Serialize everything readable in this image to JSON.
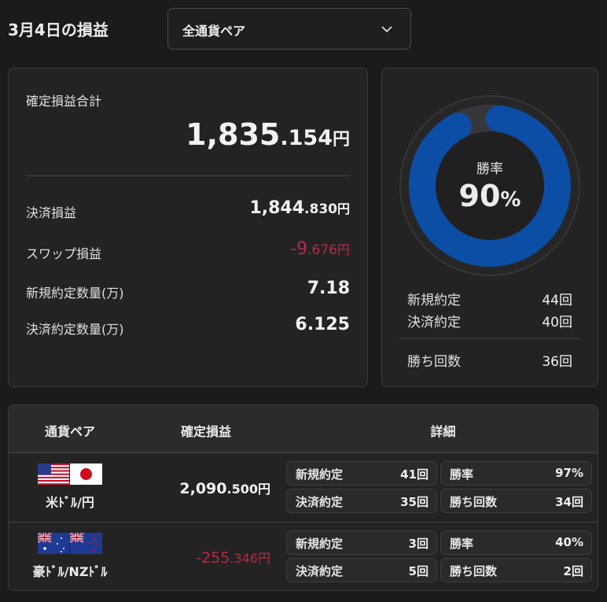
{
  "header": {
    "title": "3月4日の損益",
    "dropdown": "全通貨ペア"
  },
  "summary": {
    "total": {
      "label": "確定損益合計",
      "integer": "1,835",
      "decimal": ".154",
      "unit": "円"
    },
    "rows": [
      {
        "label": "決済損益",
        "integer": "1,844",
        "decimal": ".830",
        "unit": "円"
      },
      {
        "label": "スワップ損益",
        "integer": "-9",
        "decimal": ".676",
        "unit": "円"
      },
      {
        "label": "新規約定数量(万)",
        "value": "7.18"
      },
      {
        "label": "決済約定数量(万)",
        "value": "6.125"
      }
    ]
  },
  "win_rate_card": {
    "label": "勝率",
    "value": 90,
    "unit": "%",
    "rows": [
      {
        "label": "新規約定",
        "value": "44",
        "unit": "回"
      },
      {
        "label": "決済約定",
        "value": "40",
        "unit": "回"
      },
      {
        "label": "勝ち回数",
        "value": "36",
        "unit": "回"
      }
    ]
  },
  "table": {
    "columns": [
      "通貨ペア",
      "確定損益",
      "詳細"
    ],
    "rows": [
      {
        "pair": "米ﾄﾞﾙ/円",
        "pl": {
          "integer": "2,090",
          "decimal": ".500",
          "unit": "円"
        },
        "details": [
          {
            "label": "新規約定",
            "value": "41",
            "unit": "回"
          },
          {
            "label": "勝率",
            "value": "97",
            "unit": "%"
          },
          {
            "label": "決済約定",
            "value": "35",
            "unit": "回"
          },
          {
            "label": "勝ち回数",
            "value": "34",
            "unit": "回"
          }
        ]
      },
      {
        "pair": "豪ﾄﾞﾙ/NZﾄﾞﾙ",
        "pl": {
          "integer": "-255",
          "decimal": ".346",
          "unit": "円"
        },
        "details": [
          {
            "label": "新規約定",
            "value": "3",
            "unit": "回"
          },
          {
            "label": "勝率",
            "value": "40",
            "unit": "%"
          },
          {
            "label": "決済約定",
            "value": "5",
            "unit": "回"
          },
          {
            "label": "勝ち回数",
            "value": "2",
            "unit": "回"
          }
        ]
      }
    ]
  }
}
